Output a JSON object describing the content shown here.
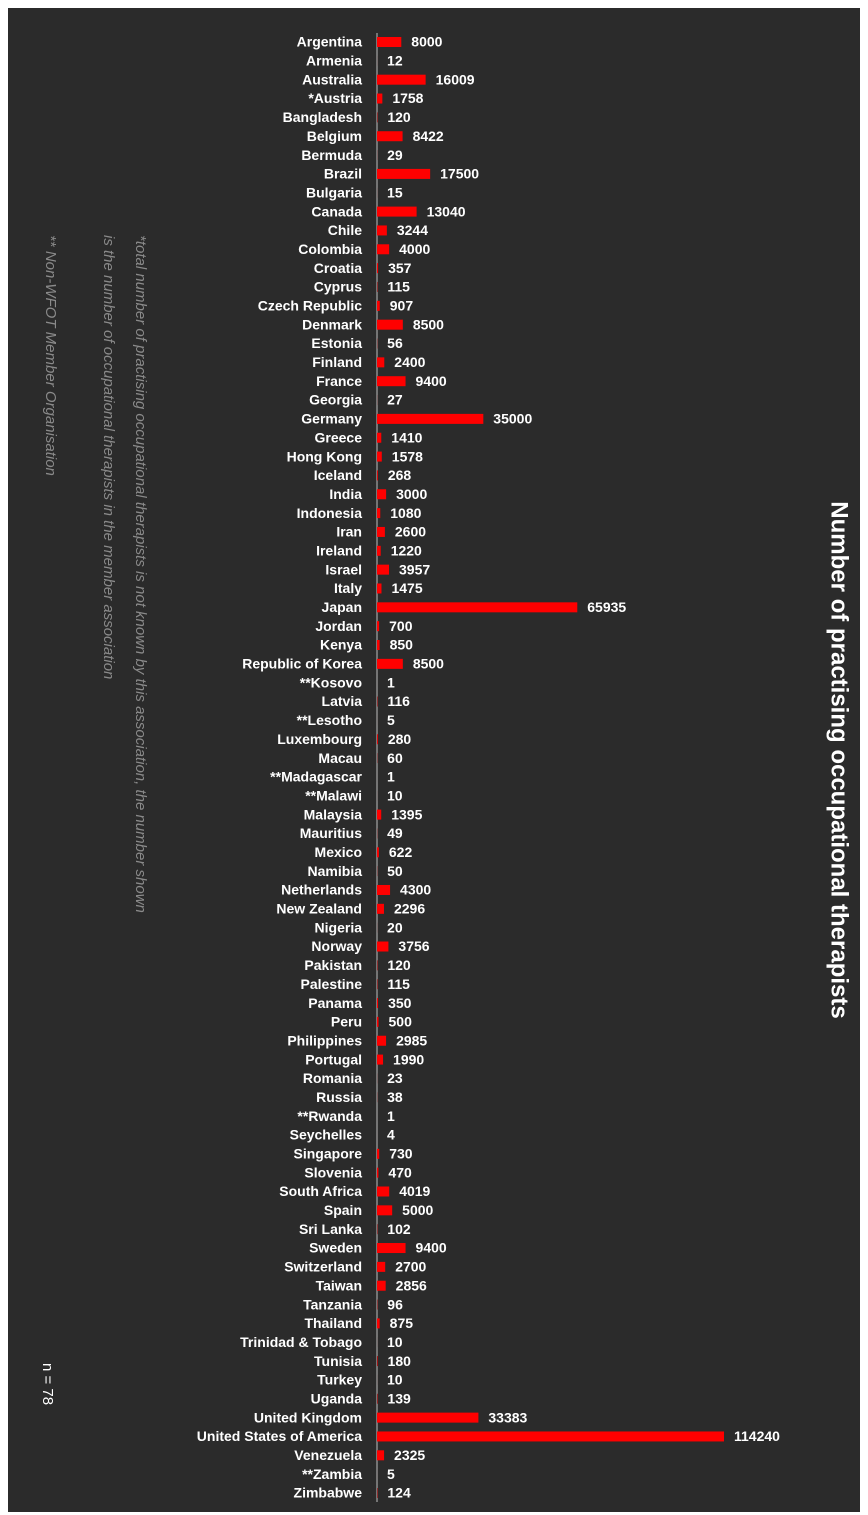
{
  "chart_data": {
    "type": "bar",
    "orientation": "horizontal",
    "title": "Number of practising occupational therapists",
    "notes": [
      "*total number of practising occupational therapists is not known by this association,  the number shown",
      "is the number of occupational therapists in the member association",
      "** Non-WFOT Member Organisation"
    ],
    "count_label": "n = 78",
    "color": "#ff0000",
    "categories": [
      "Argentina",
      "Armenia",
      "Australia",
      "*Austria",
      "Bangladesh",
      "Belgium",
      "Bermuda",
      "Brazil",
      "Bulgaria",
      "Canada",
      "Chile",
      "Colombia",
      "Croatia",
      "Cyprus",
      "Czech Republic",
      "Denmark",
      "Estonia",
      "Finland",
      "France",
      "Georgia",
      "Germany",
      "Greece",
      "Hong Kong",
      "Iceland",
      "India",
      "Indonesia",
      "Iran",
      "Ireland",
      "Israel",
      "Italy",
      "Japan",
      "Jordan",
      "Kenya",
      "Republic of Korea",
      "**Kosovo",
      "Latvia",
      "**Lesotho",
      "Luxembourg",
      "Macau",
      "**Madagascar",
      "**Malawi",
      "Malaysia",
      "Mauritius",
      "Mexico",
      "Namibia",
      "Netherlands",
      "New Zealand",
      "Nigeria",
      "Norway",
      "Pakistan",
      "Palestine",
      "Panama",
      "Peru",
      "Philippines",
      "Portugal",
      "Romania",
      "Russia",
      "**Rwanda",
      "Seychelles",
      "Singapore",
      "Slovenia",
      "South Africa",
      "Spain",
      "Sri Lanka",
      "Sweden",
      "Switzerland",
      "Taiwan",
      "Tanzania",
      "Thailand",
      "Trinidad & Tobago",
      "Tunisia",
      "Turkey",
      "Uganda",
      "United Kingdom",
      "United States of America",
      "Venezuela",
      "**Zambia",
      "Zimbabwe"
    ],
    "values": [
      8000,
      12,
      16009,
      1758,
      120,
      8422,
      29,
      17500,
      15,
      13040,
      3244,
      4000,
      357,
      115,
      907,
      8500,
      56,
      2400,
      9400,
      27,
      35000,
      1410,
      1578,
      268,
      3000,
      1080,
      2600,
      1220,
      3957,
      1475,
      65935,
      700,
      850,
      8500,
      1,
      116,
      5,
      280,
      60,
      1,
      10,
      1395,
      49,
      622,
      50,
      4300,
      2296,
      20,
      3756,
      120,
      115,
      350,
      500,
      2985,
      1990,
      23,
      38,
      1,
      4,
      730,
      470,
      4019,
      5000,
      102,
      9400,
      2700,
      2856,
      96,
      875,
      10,
      180,
      10,
      139,
      33383,
      114240,
      2325,
      5,
      124
    ]
  }
}
